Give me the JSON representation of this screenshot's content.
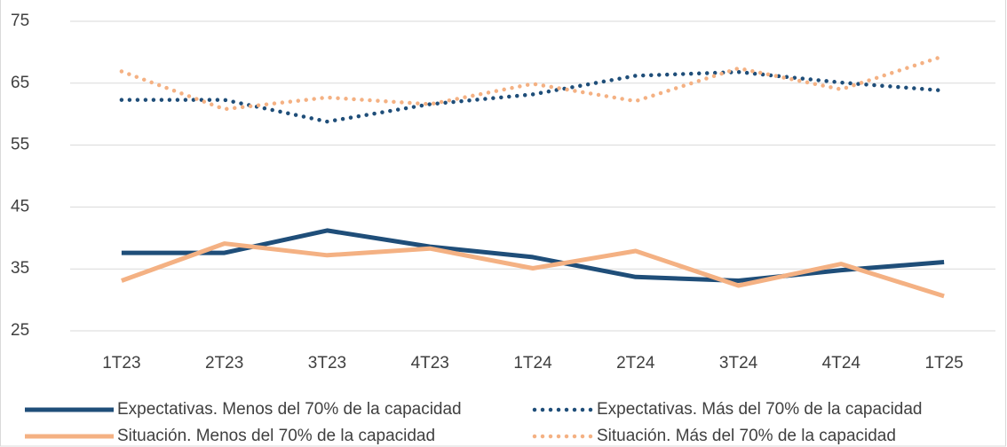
{
  "chart_data": {
    "type": "line",
    "categories": [
      "1T23",
      "2T23",
      "3T23",
      "4T23",
      "1T24",
      "2T24",
      "3T24",
      "4T24",
      "1T25"
    ],
    "series": [
      {
        "name": "Expectativas. Menos del 70% de la capacidad",
        "color": "#1f4e79",
        "style": "solid",
        "values": [
          37.6,
          37.6,
          41.2,
          38.6,
          36.9,
          33.7,
          33.1,
          34.8,
          36.1
        ]
      },
      {
        "name": "Expectativas. Más del 70% de la capacidad",
        "color": "#1f4e79",
        "style": "dotted",
        "values": [
          62.3,
          62.3,
          58.8,
          61.6,
          63.2,
          66.2,
          66.8,
          65.1,
          63.8
        ]
      },
      {
        "name": "Situación. Menos del 70% de la capacidad",
        "color": "#f4b183",
        "style": "solid",
        "values": [
          33.1,
          39.1,
          37.2,
          38.3,
          35.1,
          37.9,
          32.3,
          35.8,
          30.6
        ]
      },
      {
        "name": "Situación. Más del 70% de la capacidad",
        "color": "#f4b183",
        "style": "dotted",
        "values": [
          66.9,
          60.8,
          62.7,
          61.6,
          64.9,
          62.1,
          67.4,
          64.0,
          69.4
        ]
      }
    ],
    "ylim": [
      25,
      75
    ],
    "yticks": [
      25,
      35,
      45,
      55,
      65,
      75
    ],
    "grid": true,
    "legend": "bottom"
  }
}
